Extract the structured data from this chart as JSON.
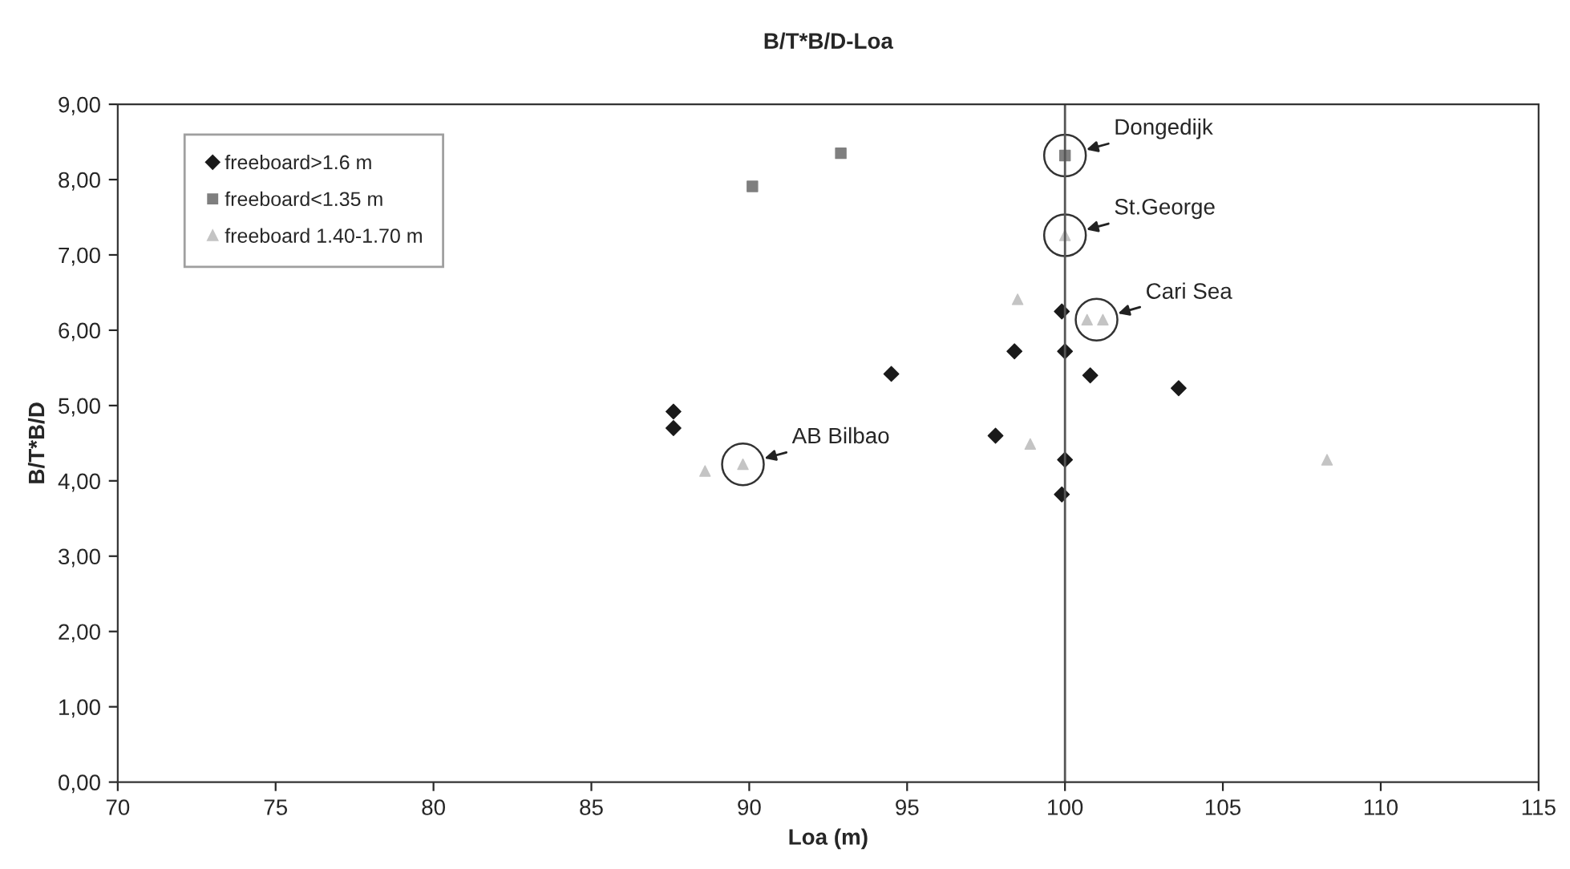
{
  "chart_data": {
    "type": "scatter",
    "title": "B/T*B/D-Loa",
    "xlabel": "Loa (m)",
    "ylabel": "B/T*B/D",
    "xlim": [
      70,
      115
    ],
    "xticks": [
      70,
      75,
      80,
      85,
      90,
      95,
      100,
      105,
      110,
      115
    ],
    "ylim": [
      0,
      9
    ],
    "yticks": [
      {
        "value": 0,
        "label": "0,00"
      },
      {
        "value": 1,
        "label": "1,00"
      },
      {
        "value": 2,
        "label": "2,00"
      },
      {
        "value": 3,
        "label": "3,00"
      },
      {
        "value": 4,
        "label": "4,00"
      },
      {
        "value": 5,
        "label": "5,00"
      },
      {
        "value": 6,
        "label": "6,00"
      },
      {
        "value": 7,
        "label": "7,00"
      },
      {
        "value": 8,
        "label": "8,00"
      },
      {
        "value": 9,
        "label": "9,00"
      }
    ],
    "grid": false,
    "legend": "top left",
    "series": [
      {
        "name": "freeboard>1.6 m",
        "color": "#1a1a1a",
        "marker": "diamond",
        "x": [
          87.6,
          87.6,
          94.5,
          97.8,
          98.4,
          99.9,
          100.0,
          100.8,
          100.0,
          99.9,
          103.6
        ],
        "values": [
          4.92,
          4.7,
          5.42,
          4.6,
          5.72,
          6.25,
          5.72,
          5.4,
          4.28,
          3.82,
          5.23
        ]
      },
      {
        "name": "freeboard<1.35 m",
        "color": "#7f7f7f",
        "marker": "square",
        "x": [
          90.1,
          92.9,
          100.0
        ],
        "values": [
          7.91,
          8.35,
          8.32
        ]
      },
      {
        "name": "freeboard 1.40-1.70 m",
        "color": "#c4c4c4",
        "marker": "triangle",
        "x": [
          88.6,
          89.8,
          98.5,
          98.9,
          100.0,
          100.7,
          101.2,
          108.3
        ],
        "values": [
          4.13,
          4.22,
          6.41,
          4.49,
          7.26,
          6.14,
          6.14,
          4.28
        ]
      }
    ],
    "ref_lines": [
      {
        "axis": "x",
        "value": 100,
        "color": "#555555"
      }
    ],
    "annotations": [
      {
        "text": "Dongedijk",
        "x": 100.0,
        "y": 8.32
      },
      {
        "text": "St.George",
        "x": 100.0,
        "y": 7.26
      },
      {
        "text": "Cari Sea",
        "x": 101.0,
        "y": 6.14
      },
      {
        "text": "AB Bilbao",
        "x": 89.8,
        "y": 4.22
      }
    ]
  }
}
